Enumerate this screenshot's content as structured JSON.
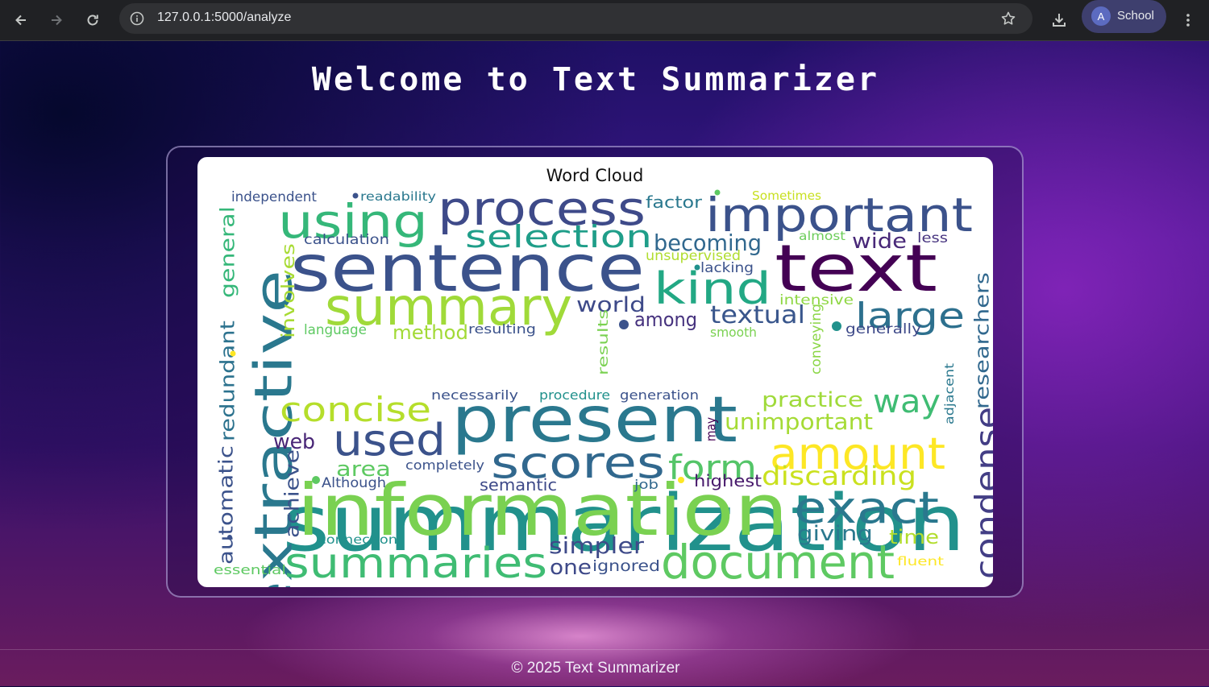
{
  "browser": {
    "url": "127.0.0.1:5000/analyze",
    "profile_initial": "A",
    "profile_name": "School"
  },
  "page": {
    "title": "Welcome to Text Summarizer",
    "footer": "© 2025 Text Summarizer"
  },
  "word_cloud": {
    "title": "Word Cloud",
    "palette": [
      "#440154",
      "#3b528b",
      "#21918c",
      "#5ec962",
      "#fde725"
    ],
    "words": [
      {
        "text": "summarization",
        "color": "#21918c"
      },
      {
        "text": "information",
        "color": "#7ad151"
      },
      {
        "text": "sentence",
        "color": "#3b528b"
      },
      {
        "text": "present",
        "color": "#2a788e"
      },
      {
        "text": "text",
        "color": "#440154"
      },
      {
        "text": "summary",
        "color": "#a0da39"
      },
      {
        "text": "process",
        "color": "#3e4a89"
      },
      {
        "text": "important",
        "color": "#3b528b"
      },
      {
        "text": "extractive",
        "color": "#2a788e"
      },
      {
        "text": "kind",
        "color": "#22a884"
      },
      {
        "text": "summaries",
        "color": "#3fbc73"
      },
      {
        "text": "document",
        "color": "#5ec962"
      },
      {
        "text": "exact",
        "color": "#2a788e"
      },
      {
        "text": "scores",
        "color": "#31688e"
      },
      {
        "text": "used",
        "color": "#3b528b"
      },
      {
        "text": "amount",
        "color": "#fde725"
      },
      {
        "text": "using",
        "color": "#35b779"
      },
      {
        "text": "condense",
        "color": "#433e85"
      },
      {
        "text": "selection",
        "color": "#1f9e89"
      },
      {
        "text": "large",
        "color": "#2d708e"
      },
      {
        "text": "concise",
        "color": "#b5de2b"
      },
      {
        "text": "way",
        "color": "#3fbc73"
      },
      {
        "text": "form",
        "color": "#54c568"
      },
      {
        "text": "discarding",
        "color": "#cae11f"
      },
      {
        "text": "unimportant",
        "color": "#a5db36"
      },
      {
        "text": "simpler",
        "color": "#3e4a89"
      },
      {
        "text": "becoming",
        "color": "#31688e"
      },
      {
        "text": "textual",
        "color": "#39568c"
      },
      {
        "text": "world",
        "color": "#3e4a89"
      },
      {
        "text": "among",
        "color": "#46327e"
      },
      {
        "text": "practice",
        "color": "#9fda3a"
      },
      {
        "text": "method",
        "color": "#a2da37"
      },
      {
        "text": "area",
        "color": "#5ec962"
      },
      {
        "text": "web",
        "color": "#482576"
      },
      {
        "text": "giving",
        "color": "#2a788e"
      },
      {
        "text": "time",
        "color": "#b2dd2d"
      },
      {
        "text": "one",
        "color": "#3e4989"
      },
      {
        "text": "researchers",
        "color": "#31688e"
      },
      {
        "text": "achieve",
        "color": "#3b528b"
      },
      {
        "text": "general",
        "color": "#35b779"
      },
      {
        "text": "redundant",
        "color": "#2c728e"
      },
      {
        "text": "automatic",
        "color": "#3b528b"
      },
      {
        "text": "involves",
        "color": "#a8db34"
      },
      {
        "text": "factor",
        "color": "#2a788e"
      },
      {
        "text": "wide",
        "color": "#482878"
      },
      {
        "text": "highest",
        "color": "#481a6c"
      },
      {
        "text": "semantic",
        "color": "#3e4a89"
      },
      {
        "text": "independent",
        "color": "#3b528b"
      },
      {
        "text": "calculation",
        "color": "#3b528b"
      },
      {
        "text": "readability",
        "color": "#2a788e"
      },
      {
        "text": "Sometimes",
        "color": "#c8e020"
      },
      {
        "text": "almost",
        "color": "#6ccd5a"
      },
      {
        "text": "less",
        "color": "#46337f"
      },
      {
        "text": "unsupervised",
        "color": "#b0dd2f"
      },
      {
        "text": "lacking",
        "color": "#3b528b"
      },
      {
        "text": "intensive",
        "color": "#8fd744"
      },
      {
        "text": "generally",
        "color": "#3e4a89"
      },
      {
        "text": "smooth",
        "color": "#7ad151"
      },
      {
        "text": "language",
        "color": "#5ec962"
      },
      {
        "text": "resulting",
        "color": "#3b528b"
      },
      {
        "text": "results",
        "color": "#7ad151"
      },
      {
        "text": "conveying",
        "color": "#8bd646"
      },
      {
        "text": "adjacent",
        "color": "#2a788e"
      },
      {
        "text": "necessarily",
        "color": "#3b528b"
      },
      {
        "text": "procedure",
        "color": "#21918c"
      },
      {
        "text": "generation",
        "color": "#3b528b"
      },
      {
        "text": "may",
        "color": "#440154"
      },
      {
        "text": "completely",
        "color": "#3b528b"
      },
      {
        "text": "Although",
        "color": "#3b528b"
      },
      {
        "text": "job",
        "color": "#31688e"
      },
      {
        "text": "connection",
        "color": "#21918c"
      },
      {
        "text": "essential",
        "color": "#5ec962"
      },
      {
        "text": "ignored",
        "color": "#3b528b"
      },
      {
        "text": "fluent",
        "color": "#fde725"
      }
    ]
  }
}
